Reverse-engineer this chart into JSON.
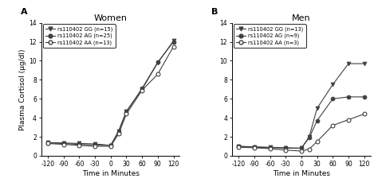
{
  "time_points": [
    -120,
    -90,
    -60,
    -30,
    0,
    15,
    30,
    60,
    90,
    120
  ],
  "women_GG": [
    1.4,
    1.35,
    1.3,
    1.25,
    1.1,
    2.6,
    4.7,
    7.0,
    9.8,
    12.1
  ],
  "women_AG": [
    1.35,
    1.3,
    1.2,
    1.15,
    1.1,
    2.5,
    4.6,
    7.1,
    9.85,
    12.0
  ],
  "women_AA": [
    1.3,
    1.2,
    1.1,
    1.0,
    1.0,
    2.3,
    4.4,
    6.9,
    8.6,
    11.5
  ],
  "men_GG": [
    1.0,
    0.95,
    0.9,
    0.85,
    0.8,
    2.0,
    5.0,
    7.5,
    9.7,
    9.7
  ],
  "men_AG": [
    1.0,
    0.9,
    0.85,
    0.8,
    0.8,
    1.9,
    3.7,
    6.0,
    6.2,
    6.2
  ],
  "men_AA": [
    0.9,
    0.85,
    0.75,
    0.6,
    0.5,
    0.7,
    1.5,
    3.2,
    3.8,
    4.4
  ],
  "title_A": "Women",
  "title_B": "Men",
  "label_A": "A",
  "label_B": "B",
  "ylabel": "Plasma Cortisol (µg/dl)",
  "xlabel": "Time in Minutes",
  "ylim": [
    0,
    14
  ],
  "yticks": [
    0,
    2,
    4,
    6,
    8,
    10,
    12,
    14
  ],
  "xticks": [
    -120,
    -90,
    -60,
    -30,
    0,
    30,
    60,
    90,
    120
  ],
  "legend_women": [
    "rs110402 GG (n=15)",
    "rs110402 AG (n=25)",
    "rs110402 AA (n=13)"
  ],
  "legend_men": [
    "rs110402 GG (n=13)",
    "rs110402 AG (n=9)",
    "rs110402 AA (n=3)"
  ],
  "line_color": "#404040",
  "bg_color": "#ffffff"
}
